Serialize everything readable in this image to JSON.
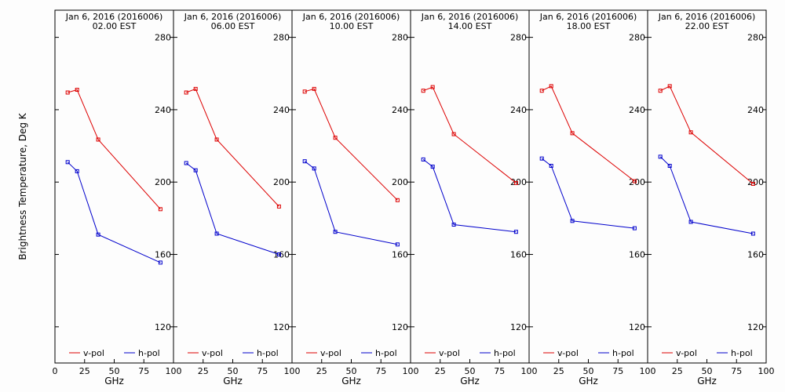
{
  "figure": {
    "ylabel": "Brightness Temperature, Deg K",
    "xlabel": "GHz",
    "date_line": "Jan  6, 2016 (2016006)"
  },
  "colors": {
    "vpol": "#dd0000",
    "hpol": "#0000cc",
    "axis": "#000000",
    "background": "#fdfdfd"
  },
  "chart_data": [
    {
      "type": "line",
      "title": "Jan  6, 2016 (2016006)",
      "subtitle": "02.00 EST",
      "xlabel": "GHz",
      "ylabel": "Brightness Temperature, Deg K",
      "xlim": [
        0,
        100
      ],
      "ylim": [
        100,
        295
      ],
      "xticks": [
        0,
        25,
        50,
        75,
        100
      ],
      "xtick_labels": [
        "0",
        "25",
        "50",
        "75",
        "100"
      ],
      "yticks": [
        120,
        160,
        200,
        240,
        280
      ],
      "ytick_labels": [
        "120",
        "160",
        "200",
        "240",
        "280"
      ],
      "legend": "bottom",
      "series": [
        {
          "name": "v-pol",
          "x": [
            10.7,
            18.7,
            36.5,
            89.0
          ],
          "y": [
            249.5,
            251.0,
            223.5,
            185.0
          ]
        },
        {
          "name": "h-pol",
          "x": [
            10.7,
            18.7,
            36.5,
            89.0
          ],
          "y": [
            211.0,
            206.0,
            171.0,
            155.5
          ]
        }
      ]
    },
    {
      "type": "line",
      "title": "Jan  6, 2016 (2016006)",
      "subtitle": "06.00 EST",
      "xlabel": "GHz",
      "ylabel": "Brightness Temperature, Deg K",
      "xlim": [
        0,
        100
      ],
      "ylim": [
        100,
        295
      ],
      "xticks": [
        0,
        25,
        50,
        75,
        100
      ],
      "xtick_labels": [
        "",
        "25",
        "50",
        "75",
        "100"
      ],
      "yticks": [
        120,
        160,
        200,
        240,
        280
      ],
      "ytick_labels": [
        "120",
        "160",
        "200",
        "240",
        "280"
      ],
      "legend": "bottom",
      "series": [
        {
          "name": "v-pol",
          "x": [
            10.7,
            18.7,
            36.5,
            89.0
          ],
          "y": [
            249.5,
            251.5,
            223.5,
            186.5
          ]
        },
        {
          "name": "h-pol",
          "x": [
            10.7,
            18.7,
            36.5,
            89.0
          ],
          "y": [
            210.5,
            206.5,
            171.5,
            160.0
          ]
        }
      ]
    },
    {
      "type": "line",
      "title": "Jan  6, 2016 (2016006)",
      "subtitle": "10.00 EST",
      "xlabel": "GHz",
      "ylabel": "Brightness Temperature, Deg K",
      "xlim": [
        0,
        100
      ],
      "ylim": [
        100,
        295
      ],
      "xticks": [
        0,
        25,
        50,
        75,
        100
      ],
      "xtick_labels": [
        "",
        "25",
        "50",
        "75",
        "100"
      ],
      "yticks": [
        120,
        160,
        200,
        240,
        280
      ],
      "ytick_labels": [
        "120",
        "160",
        "200",
        "240",
        "280"
      ],
      "legend": "bottom",
      "series": [
        {
          "name": "v-pol",
          "x": [
            10.7,
            18.7,
            36.5,
            89.0
          ],
          "y": [
            250.0,
            251.5,
            224.5,
            190.0
          ]
        },
        {
          "name": "h-pol",
          "x": [
            10.7,
            18.7,
            36.5,
            89.0
          ],
          "y": [
            211.5,
            207.5,
            172.5,
            165.5
          ]
        }
      ]
    },
    {
      "type": "line",
      "title": "Jan  6, 2016 (2016006)",
      "subtitle": "14.00 EST",
      "xlabel": "GHz",
      "ylabel": "Brightness Temperature, Deg K",
      "xlim": [
        0,
        100
      ],
      "ylim": [
        100,
        295
      ],
      "xticks": [
        0,
        25,
        50,
        75,
        100
      ],
      "xtick_labels": [
        "",
        "25",
        "50",
        "75",
        "100"
      ],
      "yticks": [
        120,
        160,
        200,
        240,
        280
      ],
      "ytick_labels": [
        "120",
        "160",
        "200",
        "240",
        "280"
      ],
      "legend": "bottom",
      "series": [
        {
          "name": "v-pol",
          "x": [
            10.7,
            18.7,
            36.5,
            89.0
          ],
          "y": [
            250.5,
            252.5,
            226.5,
            199.5
          ]
        },
        {
          "name": "h-pol",
          "x": [
            10.7,
            18.7,
            36.5,
            89.0
          ],
          "y": [
            212.5,
            208.5,
            176.5,
            172.5
          ]
        }
      ]
    },
    {
      "type": "line",
      "title": "Jan  6, 2016 (2016006)",
      "subtitle": "18.00 EST",
      "xlabel": "GHz",
      "ylabel": "Brightness Temperature, Deg K",
      "xlim": [
        0,
        100
      ],
      "ylim": [
        100,
        295
      ],
      "xticks": [
        0,
        25,
        50,
        75,
        100
      ],
      "xtick_labels": [
        "",
        "25",
        "50",
        "75",
        "100"
      ],
      "yticks": [
        120,
        160,
        200,
        240,
        280
      ],
      "ytick_labels": [
        "120",
        "160",
        "200",
        "240",
        "280"
      ],
      "legend": "bottom",
      "series": [
        {
          "name": "v-pol",
          "x": [
            10.7,
            18.7,
            36.5,
            89.0
          ],
          "y": [
            250.5,
            253.0,
            227.0,
            200.5
          ]
        },
        {
          "name": "h-pol",
          "x": [
            10.7,
            18.7,
            36.5,
            89.0
          ],
          "y": [
            213.0,
            209.0,
            178.5,
            174.5
          ]
        }
      ]
    },
    {
      "type": "line",
      "title": "Jan  6, 2016 (2016006)",
      "subtitle": "22.00 EST",
      "xlabel": "GHz",
      "ylabel": "Brightness Temperature, Deg K",
      "xlim": [
        0,
        100
      ],
      "ylim": [
        100,
        295
      ],
      "xticks": [
        0,
        25,
        50,
        75,
        100
      ],
      "xtick_labels": [
        "",
        "25",
        "50",
        "75",
        "100"
      ],
      "yticks": [
        120,
        160,
        200,
        240,
        280
      ],
      "ytick_labels": [
        "120",
        "160",
        "200",
        "240",
        "280"
      ],
      "legend": "bottom",
      "series": [
        {
          "name": "v-pol",
          "x": [
            10.7,
            18.7,
            36.5,
            89.0
          ],
          "y": [
            250.5,
            253.0,
            227.5,
            199.0
          ]
        },
        {
          "name": "h-pol",
          "x": [
            10.7,
            18.7,
            36.5,
            89.0
          ],
          "y": [
            214.0,
            209.0,
            178.0,
            171.5
          ]
        }
      ]
    }
  ]
}
